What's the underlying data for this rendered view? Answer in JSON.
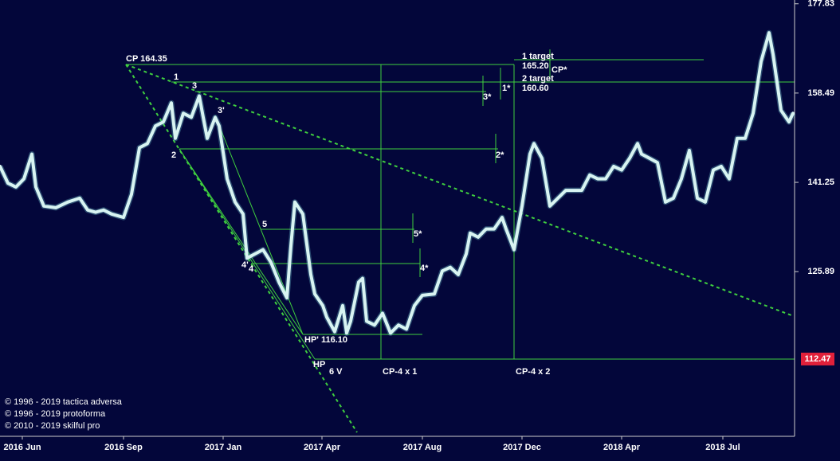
{
  "chart_data": {
    "type": "line",
    "log_scale": true,
    "x": [
      0,
      2,
      4,
      6,
      8,
      9,
      11,
      14,
      17,
      20,
      22,
      24,
      26,
      28,
      31,
      33,
      35,
      37,
      39,
      41,
      43,
      44,
      46,
      48,
      50,
      51,
      52,
      54,
      55,
      57,
      59,
      61,
      62,
      64,
      66,
      68,
      70,
      72,
      73,
      74,
      76,
      78,
      79,
      81,
      82,
      84,
      86,
      87,
      88,
      90,
      91,
      92,
      94,
      96,
      98,
      100,
      102,
      104,
      106,
      109,
      111,
      113,
      115,
      117,
      118,
      120,
      122,
      124,
      126,
      127,
      129,
      131,
      133,
      134,
      136,
      138,
      140,
      142,
      146,
      148,
      150,
      152,
      154,
      156,
      158,
      160,
      161,
      163,
      165,
      167,
      169,
      171,
      173,
      175,
      177,
      179,
      181,
      183,
      185,
      187,
      189,
      191,
      193,
      194,
      196,
      198,
      199
    ],
    "series": [
      {
        "color": "#d8f4f2",
        "values": [
          144.2,
          141.1,
          140.4,
          141.9,
          146.5,
          140.4,
          137.0,
          136.7,
          137.7,
          138.4,
          136.3,
          135.9,
          136.3,
          135.6,
          135.0,
          139.1,
          147.7,
          148.5,
          151.9,
          152.7,
          156.5,
          149.5,
          154.4,
          153.6,
          157.9,
          153.6,
          149.5,
          153.6,
          151.9,
          141.9,
          137.7,
          135.6,
          128.1,
          128.8,
          129.5,
          127.4,
          124.2,
          121.7,
          130.1,
          137.7,
          135.6,
          125.4,
          122.3,
          120.5,
          118.7,
          116.5,
          120.5,
          116.3,
          118.1,
          124.2,
          124.8,
          118.1,
          117.5,
          119.3,
          116.3,
          117.5,
          116.9,
          120.5,
          122.1,
          122.3,
          126.0,
          126.6,
          125.4,
          128.8,
          132.3,
          131.6,
          133.0,
          133.0,
          135.0,
          133.0,
          129.5,
          137.0,
          146.5,
          148.5,
          145.7,
          137.0,
          138.4,
          139.8,
          139.8,
          142.6,
          141.9,
          141.9,
          144.2,
          143.5,
          145.7,
          148.5,
          146.5,
          145.7,
          144.9,
          137.7,
          138.4,
          141.9,
          147.2,
          138.4,
          137.7,
          143.5,
          144.2,
          141.9,
          149.5,
          149.5,
          154.4,
          165.1,
          171.3,
          166.6,
          155.0,
          152.7,
          154.4
        ]
      }
    ],
    "xlim": [
      0,
      199.4
    ],
    "xticks": [
      {
        "value": 5.6,
        "label": "2016 Jun"
      },
      {
        "value": 31,
        "label": "2016 Sep"
      },
      {
        "value": 56,
        "label": "2017 Jan"
      },
      {
        "value": 80.8,
        "label": "2017 Apr"
      },
      {
        "value": 106,
        "label": "2017 Aug"
      },
      {
        "value": 131,
        "label": "2017 Dec"
      },
      {
        "value": 156,
        "label": "2018 Apr"
      },
      {
        "value": 181.4,
        "label": "2018 Jul"
      }
    ],
    "ylim": [
      101.8,
      178.7
    ],
    "yticks": [
      177.83,
      158.49,
      141.25,
      125.89
    ],
    "last_price": 112.47,
    "annotations": [
      "CP 164.35",
      "1",
      "3",
      "3'",
      "2",
      "1 target",
      "165.20",
      "CP*",
      "2 target",
      "160.60",
      "1*",
      "3*",
      "2*",
      "5",
      "5*",
      "4'",
      "4",
      "4*",
      "HP' 116.10",
      "HP",
      "6 V",
      "CP-4 x 1",
      "CP-4 x 2"
    ],
    "copyright": [
      "© 1996 - 2019 tactica adversa",
      "© 1996 - 2019 protoforma",
      "© 2010 - 2019 skilful pro"
    ]
  }
}
